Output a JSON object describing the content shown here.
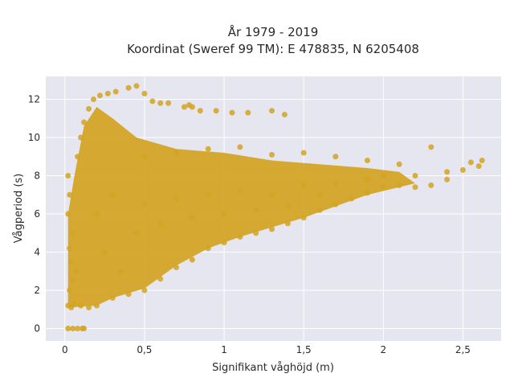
{
  "chart_data": {
    "type": "scatter",
    "title_line1": "År 1979 - 2019",
    "title_line2": "Koordinat (Sweref 99 TM): E 478835, N 6205408",
    "xlabel": "Signifikant våghöjd (m)",
    "ylabel": "Vågperiod (s)",
    "xlim": [
      -0.12,
      2.74
    ],
    "ylim": [
      -0.65,
      13.2
    ],
    "x_ticks": [
      0,
      0.5,
      1,
      1.5,
      2,
      2.5
    ],
    "x_tick_labels": [
      "0",
      "0,5",
      "1",
      "1,5",
      "2",
      "2,5"
    ],
    "y_ticks": [
      0,
      2,
      4,
      6,
      8,
      10,
      12
    ],
    "y_tick_labels": [
      "0",
      "2",
      "4",
      "6",
      "8",
      "10",
      "12"
    ],
    "grid": true,
    "legend": "none",
    "marker_color": "#d4a321",
    "plot_background": "#e5e6ef",
    "points": [
      [
        0.02,
        0.0
      ],
      [
        0.05,
        0.0
      ],
      [
        0.08,
        0.0
      ],
      [
        0.11,
        0.0
      ],
      [
        0.12,
        0.0
      ],
      [
        0.02,
        1.2
      ],
      [
        0.04,
        1.1
      ],
      [
        0.06,
        1.3
      ],
      [
        0.1,
        1.2
      ],
      [
        0.15,
        1.1
      ],
      [
        0.2,
        1.2
      ],
      [
        0.03,
        2.0
      ],
      [
        0.05,
        2.5
      ],
      [
        0.07,
        3.0
      ],
      [
        0.04,
        3.5
      ],
      [
        0.03,
        4.2
      ],
      [
        0.05,
        5.0
      ],
      [
        0.02,
        6.0
      ],
      [
        0.03,
        7.0
      ],
      [
        0.02,
        8.0
      ],
      [
        0.08,
        9.0
      ],
      [
        0.1,
        10.0
      ],
      [
        0.12,
        10.8
      ],
      [
        0.15,
        11.5
      ],
      [
        0.18,
        12.0
      ],
      [
        0.22,
        12.2
      ],
      [
        0.27,
        12.3
      ],
      [
        0.32,
        12.4
      ],
      [
        0.4,
        12.6
      ],
      [
        0.45,
        12.7
      ],
      [
        0.5,
        12.3
      ],
      [
        0.55,
        11.9
      ],
      [
        0.6,
        11.8
      ],
      [
        0.65,
        11.8
      ],
      [
        0.75,
        11.6
      ],
      [
        0.78,
        11.7
      ],
      [
        0.8,
        11.6
      ],
      [
        0.85,
        11.4
      ],
      [
        0.95,
        11.4
      ],
      [
        1.05,
        11.3
      ],
      [
        1.15,
        11.3
      ],
      [
        1.3,
        11.4
      ],
      [
        1.38,
        11.2
      ],
      [
        0.3,
        1.6
      ],
      [
        0.4,
        1.8
      ],
      [
        0.5,
        2.0
      ],
      [
        0.6,
        2.6
      ],
      [
        0.7,
        3.2
      ],
      [
        0.8,
        3.6
      ],
      [
        0.9,
        4.2
      ],
      [
        1.0,
        4.5
      ],
      [
        1.1,
        4.8
      ],
      [
        1.2,
        5.0
      ],
      [
        1.3,
        5.2
      ],
      [
        1.4,
        5.5
      ],
      [
        1.5,
        5.8
      ],
      [
        1.6,
        6.2
      ],
      [
        1.7,
        6.5
      ],
      [
        1.8,
        6.8
      ],
      [
        1.9,
        7.1
      ],
      [
        2.0,
        7.4
      ],
      [
        2.1,
        7.5
      ],
      [
        2.2,
        7.4
      ],
      [
        2.3,
        7.5
      ],
      [
        2.4,
        7.8
      ],
      [
        2.5,
        8.3
      ],
      [
        2.6,
        8.5
      ],
      [
        2.62,
        8.8
      ],
      [
        2.55,
        8.7
      ],
      [
        0.5,
        9.0
      ],
      [
        0.7,
        9.2
      ],
      [
        0.9,
        9.4
      ],
      [
        1.1,
        9.5
      ],
      [
        1.3,
        9.1
      ],
      [
        1.5,
        9.2
      ],
      [
        1.7,
        9.0
      ],
      [
        1.9,
        8.8
      ],
      [
        2.1,
        8.6
      ],
      [
        2.3,
        9.5
      ],
      [
        2.4,
        8.2
      ],
      [
        0.2,
        6.0
      ],
      [
        0.3,
        7.0
      ],
      [
        0.5,
        6.5
      ],
      [
        0.7,
        6.8
      ],
      [
        0.9,
        7.0
      ],
      [
        1.1,
        7.2
      ],
      [
        1.3,
        7.0
      ],
      [
        1.5,
        7.5
      ],
      [
        1.7,
        7.6
      ],
      [
        1.9,
        7.8
      ],
      [
        2.0,
        8.0
      ],
      [
        2.2,
        8.0
      ],
      [
        0.25,
        4.0
      ],
      [
        0.35,
        3.0
      ],
      [
        0.45,
        5.0
      ],
      [
        0.6,
        5.5
      ],
      [
        0.8,
        5.8
      ],
      [
        1.0,
        6.0
      ],
      [
        1.2,
        6.2
      ],
      [
        1.4,
        6.4
      ],
      [
        1.6,
        7.0
      ]
    ],
    "point_note_removed": true
  }
}
